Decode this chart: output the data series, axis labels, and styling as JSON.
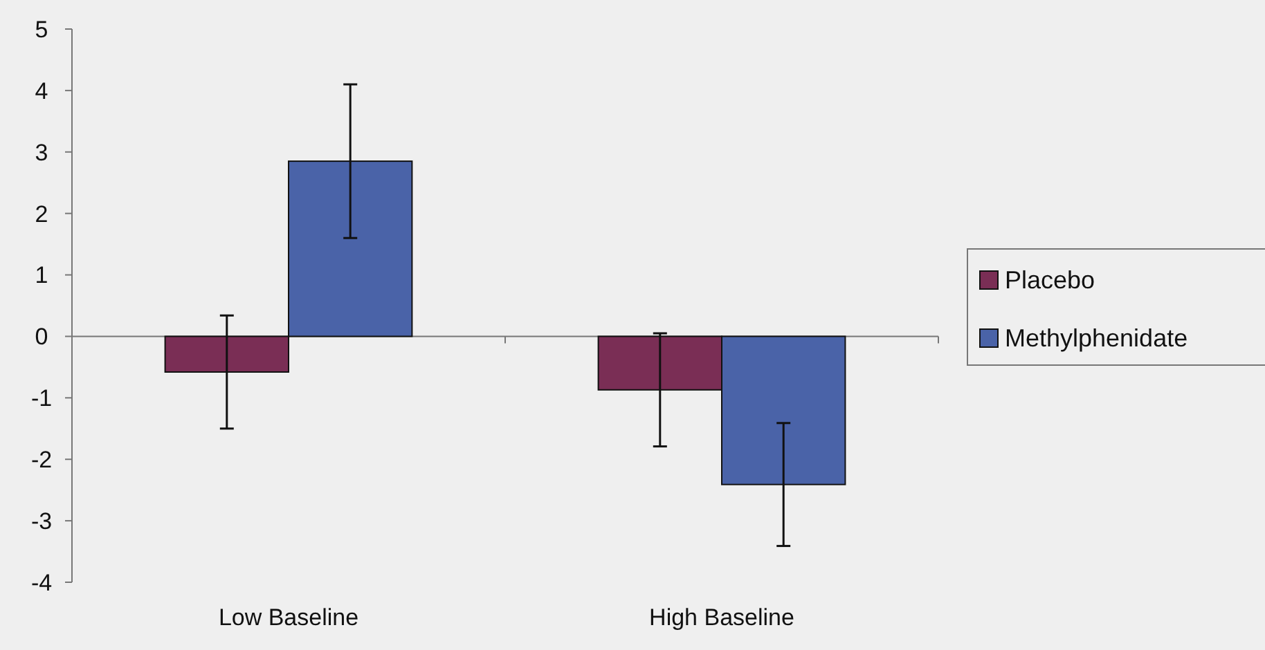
{
  "chart_data": {
    "type": "bar",
    "categories": [
      "Low Baseline",
      "High Baseline"
    ],
    "series": [
      {
        "name": "Placebo",
        "color": "#7a2e55",
        "values": [
          -0.58,
          -0.87
        ],
        "errors": [
          0.92,
          0.92
        ]
      },
      {
        "name": "Methylphenidate",
        "color": "#4a63a8",
        "values": [
          2.85,
          -2.41
        ],
        "errors": [
          1.25,
          1.0
        ]
      }
    ],
    "ylim": [
      -4,
      5
    ],
    "yticks": [
      -4,
      -3,
      -2,
      -1,
      0,
      1,
      2,
      3,
      4,
      5
    ],
    "legend": "right"
  }
}
